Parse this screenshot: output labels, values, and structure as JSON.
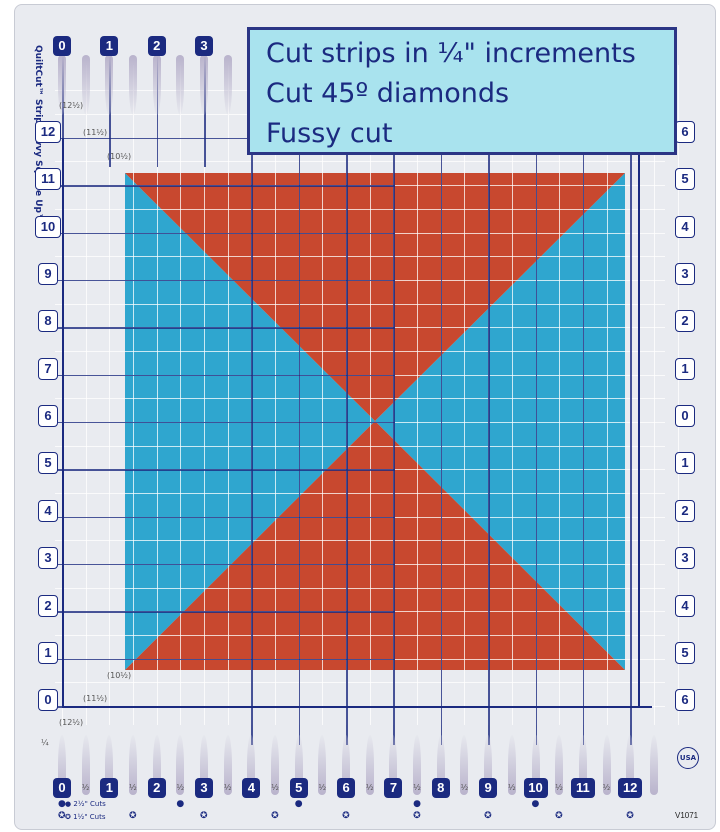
{
  "product": {
    "brand": "QuiltCut™",
    "name": "Strip Savvy Square Up™",
    "made_in": "USA",
    "sku": "V1071"
  },
  "callout": {
    "lines": [
      "Cut strips in ¼\" increments",
      "Cut 45º diamonds",
      "Fussy cut"
    ],
    "bg_color": "#a9e3ee",
    "border_color": "#2b3585"
  },
  "ruler": {
    "top_numbers": [
      "0",
      "1",
      "2",
      "3"
    ],
    "bottom_numbers": [
      "0",
      "1",
      "2",
      "3",
      "4",
      "5",
      "6",
      "7",
      "8",
      "9",
      "10",
      "11",
      "12"
    ],
    "left_numbers": [
      "12",
      "11",
      "10",
      "9",
      "8",
      "7",
      "6",
      "5",
      "4",
      "3",
      "2",
      "1",
      "0"
    ],
    "right_numbers": [
      "6",
      "5",
      "4",
      "3",
      "2",
      "1",
      "0",
      "1",
      "2",
      "3",
      "4",
      "5",
      "6"
    ],
    "half_label": "½",
    "quarter_label": "¼",
    "corner_labels": [
      "12½",
      "11½",
      "10½",
      "12½",
      "11½",
      "10½"
    ],
    "legend": [
      {
        "icon": "dot-icon",
        "label": "2½\" Cuts"
      },
      {
        "icon": "star-icon",
        "label": "1½\" Cuts"
      }
    ],
    "accent_color": "#1b2a80"
  },
  "fabric": {
    "red": "#c8482f",
    "blue": "#2fa6cf"
  }
}
